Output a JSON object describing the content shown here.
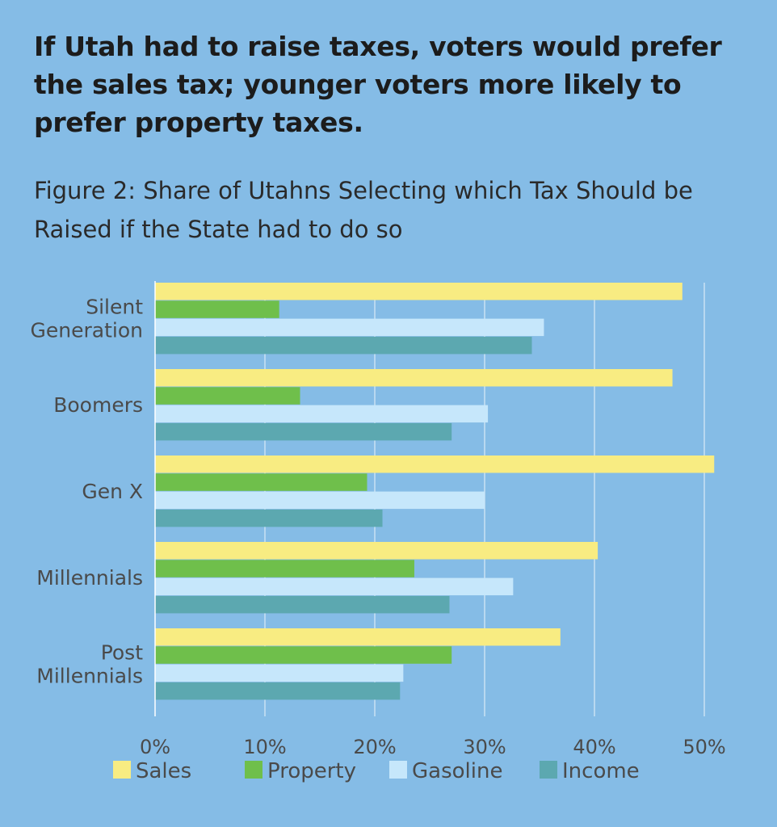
{
  "headline": "If Utah had to raise taxes, voters would prefer the sales tax; younger voters more likely to prefer property taxes.",
  "subtitle": "Figure 2:  Share of Utahns Selecting which Tax Should be Raised if the State had to do so",
  "chart_data": {
    "type": "bar",
    "orientation": "horizontal",
    "categories": [
      [
        "Silent",
        "Generation"
      ],
      [
        "Boomers"
      ],
      [
        "Gen X"
      ],
      [
        "Millennials"
      ],
      [
        "Post",
        "Millennials"
      ]
    ],
    "series": [
      {
        "name": "Sales",
        "color": "#f8ec82",
        "values": [
          48.0,
          47.1,
          50.9,
          40.3,
          36.9
        ]
      },
      {
        "name": "Property",
        "color": "#6fbf4b",
        "values": [
          11.3,
          13.2,
          19.3,
          23.6,
          27.0
        ]
      },
      {
        "name": "Gasoline",
        "color": "#c6e7fb",
        "values": [
          35.4,
          30.3,
          30.0,
          32.6,
          22.6
        ]
      },
      {
        "name": "Income",
        "color": "#5ca8b0",
        "values": [
          34.3,
          27.0,
          20.7,
          26.8,
          22.3
        ]
      }
    ],
    "xlim": [
      0,
      50
    ],
    "xticks": [
      0,
      10,
      20,
      30,
      40,
      50
    ],
    "xtick_labels": [
      "0%",
      "10%",
      "20%",
      "30%",
      "40%",
      "50%"
    ],
    "grid": true,
    "legend_position": "bottom"
  }
}
